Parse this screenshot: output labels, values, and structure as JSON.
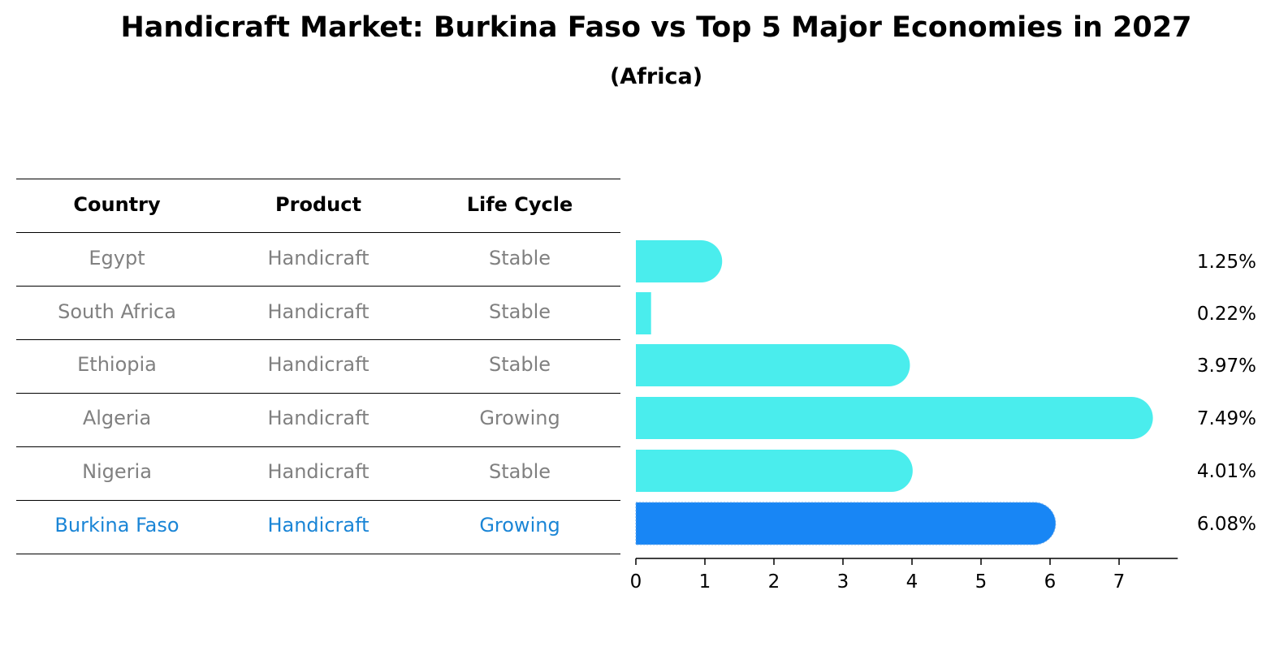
{
  "title": "Handicraft Market: Burkina Faso vs Top 5 Major Economies in 2027",
  "subtitle": "(Africa)",
  "table": {
    "headers": [
      "Country",
      "Product",
      "Life Cycle"
    ],
    "rows": [
      {
        "country": "Egypt",
        "product": "Handicraft",
        "life_cycle": "Stable"
      },
      {
        "country": "South Africa",
        "product": "Handicraft",
        "life_cycle": "Stable"
      },
      {
        "country": "Ethiopia",
        "product": "Handicraft",
        "life_cycle": "Stable"
      },
      {
        "country": "Algeria",
        "product": "Handicraft",
        "life_cycle": "Growing"
      },
      {
        "country": "Nigeria",
        "product": "Handicraft",
        "life_cycle": "Stable"
      },
      {
        "country": "Burkina Faso",
        "product": "Handicraft",
        "life_cycle": "Growing"
      }
    ]
  },
  "colors": {
    "bar": "#4aeded",
    "highlight_bar": "#1886f5",
    "highlight_text": "#1a85d6",
    "row_text": "#808080"
  },
  "chart_data": {
    "type": "bar",
    "orientation": "horizontal",
    "categories": [
      "Egypt",
      "South Africa",
      "Ethiopia",
      "Algeria",
      "Nigeria",
      "Burkina Faso"
    ],
    "values": [
      1.25,
      0.22,
      3.97,
      7.49,
      4.01,
      6.08
    ],
    "value_labels": [
      "1.25%",
      "0.22%",
      "3.97%",
      "7.49%",
      "4.01%",
      "6.08%"
    ],
    "highlight": "Burkina Faso",
    "xlim": [
      0,
      7.85
    ],
    "xticks": [
      0,
      1,
      2,
      3,
      4,
      5,
      6,
      7
    ],
    "grid": false
  }
}
